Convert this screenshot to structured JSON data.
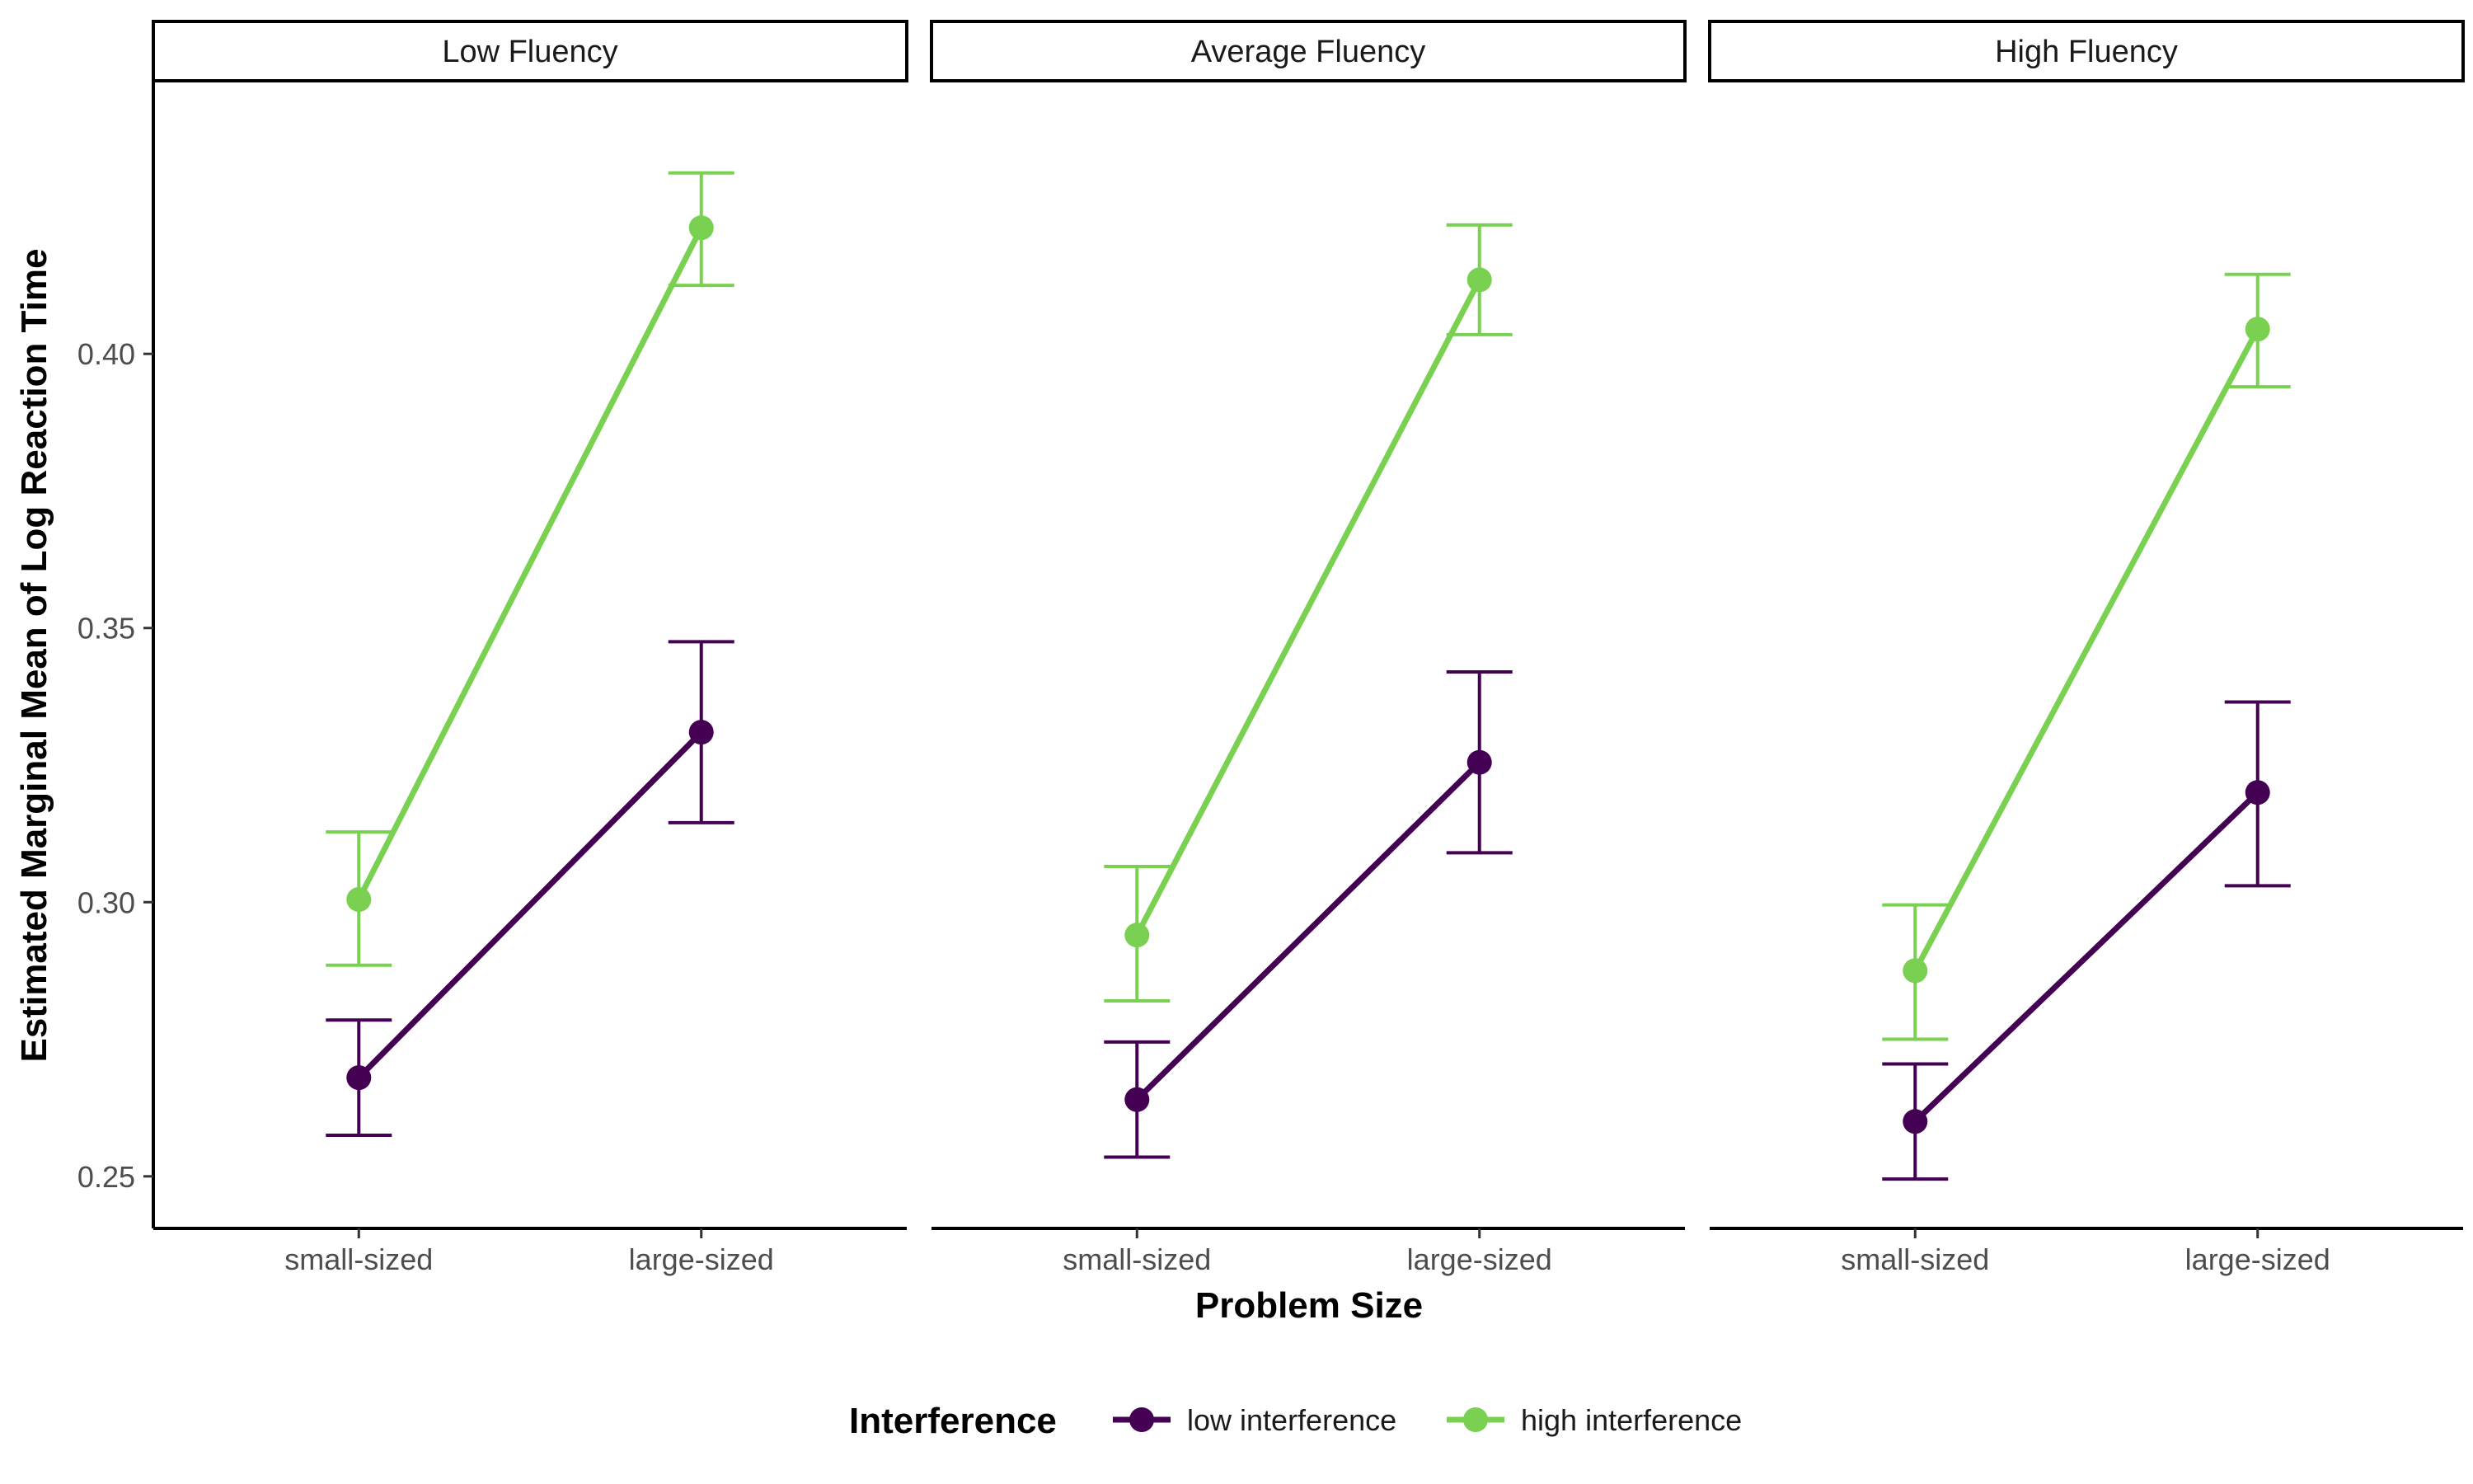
{
  "chart_data": {
    "type": "line",
    "facet_titles": [
      "Low Fluency",
      "Average Fluency",
      "High Fluency"
    ],
    "categories": [
      "small-sized",
      "large-sized"
    ],
    "xlabel": "Problem Size",
    "ylabel": "Estimated Marginal Mean of Log Reaction Time",
    "ylim": [
      0.2405,
      0.4495
    ],
    "yticks": [
      0.25,
      0.3,
      0.35,
      0.4
    ],
    "ytick_labels": [
      "0.25",
      "0.30",
      "0.35",
      "0.40"
    ],
    "grid": false,
    "legend": {
      "title": "Interference",
      "position": "bottom",
      "entries": [
        "low interference",
        "high interference"
      ]
    },
    "series": [
      {
        "name": "low interference",
        "color": "#440154",
        "facets": [
          {
            "values": [
              0.268,
              0.331
            ],
            "lower": [
              0.2575,
              0.3145
            ],
            "upper": [
              0.2785,
              0.3475
            ]
          },
          {
            "values": [
              0.264,
              0.3255
            ],
            "lower": [
              0.2535,
              0.309
            ],
            "upper": [
              0.2745,
              0.342
            ]
          },
          {
            "values": [
              0.26,
              0.32
            ],
            "lower": [
              0.2495,
              0.303
            ],
            "upper": [
              0.2705,
              0.3365
            ]
          }
        ]
      },
      {
        "name": "high interference",
        "color": "#7AD151",
        "facets": [
          {
            "values": [
              0.3005,
              0.423
            ],
            "lower": [
              0.2885,
              0.4125
            ],
            "upper": [
              0.3128,
              0.433
            ]
          },
          {
            "values": [
              0.294,
              0.4135
            ],
            "lower": [
              0.282,
              0.4035
            ],
            "upper": [
              0.3065,
              0.4235
            ]
          },
          {
            "values": [
              0.2875,
              0.4045
            ],
            "lower": [
              0.275,
              0.394
            ],
            "upper": [
              0.2995,
              0.4145
            ]
          }
        ]
      }
    ]
  }
}
